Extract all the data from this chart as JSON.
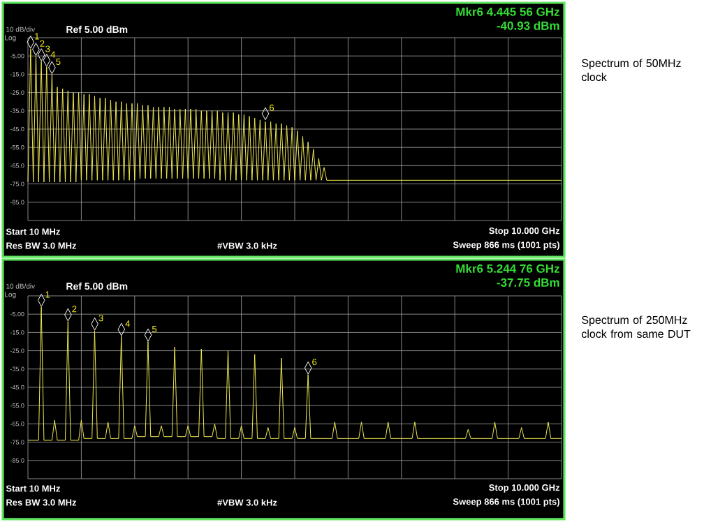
{
  "chart_data": [
    {
      "type": "line",
      "ylim": [
        -95,
        5
      ],
      "categories": [
        null,
        null,
        null,
        null,
        null,
        null,
        null,
        null,
        null,
        null,
        null,
        null,
        null,
        null,
        null,
        null,
        null,
        null,
        null,
        null,
        null,
        null,
        null,
        null,
        null,
        null,
        null,
        null,
        null,
        null,
        null,
        null,
        null,
        null,
        null,
        null,
        null,
        null,
        null,
        null,
        null,
        null,
        null,
        null,
        null,
        null,
        null,
        null,
        null,
        null,
        null,
        null,
        null,
        null,
        null,
        null,
        null,
        null,
        null,
        null,
        null,
        null,
        null,
        null,
        null,
        null,
        null,
        null,
        null,
        null,
        null,
        null,
        null,
        null,
        null,
        null,
        null,
        null,
        null,
        null,
        null,
        null,
        null,
        null,
        null,
        null,
        null,
        null,
        null,
        null,
        null,
        null,
        null,
        null,
        null,
        null,
        null,
        null,
        null,
        null,
        null,
        null,
        null,
        null,
        null,
        null,
        null,
        null,
        null,
        null,
        null,
        null,
        null,
        null,
        null,
        null,
        null,
        null,
        null,
        null,
        null,
        null,
        null,
        null,
        null,
        null,
        null,
        null,
        null,
        null,
        null,
        null,
        null,
        null,
        null,
        null,
        null,
        null,
        null,
        null,
        null,
        null,
        null,
        null,
        null,
        null,
        null,
        null,
        null,
        null,
        null,
        null,
        null,
        null,
        null,
        null,
        null,
        null,
        null,
        null,
        null,
        null,
        null,
        null,
        null,
        null,
        null,
        null,
        null,
        null,
        null,
        null,
        null,
        null,
        null,
        null,
        null,
        null,
        null,
        null,
        null,
        null,
        null,
        null,
        null,
        null,
        null,
        null,
        null,
        null,
        null,
        null,
        null,
        null,
        null,
        null,
        null,
        null,
        null,
        null,
        null
      ],
      "yticks": [
        {
          "value": -5,
          "label": "-5.00"
        },
        {
          "value": -15,
          "label": "-15.0"
        },
        {
          "value": -25,
          "label": "-25.0"
        },
        {
          "value": -35,
          "label": "-35.0"
        },
        {
          "value": -45,
          "label": "-45.0"
        },
        {
          "value": -55,
          "label": "-55.0"
        },
        {
          "value": -65,
          "label": "-65.0"
        },
        {
          "value": -75,
          "label": "-75.0"
        },
        {
          "value": -85,
          "label": "-85.0"
        }
      ],
      "tick_labels": "y",
      "grid": true,
      "series": [
        {
          "color": "#f0e850",
          "values": [
            -74,
            -1,
            -74,
            -5,
            -74,
            -8,
            -74,
            -11,
            -74,
            -15,
            -74,
            -22,
            -74,
            -23,
            -74,
            -24,
            -74,
            -25,
            -74,
            -25,
            -73,
            -26,
            -73,
            -26,
            -73,
            -27,
            -73,
            -28,
            -73,
            -28,
            -73,
            -29,
            -73,
            -30,
            -73,
            -30,
            -73,
            -31,
            -73,
            -31,
            -73,
            -31,
            -72,
            -32,
            -72,
            -32,
            -72,
            -33,
            -72,
            -33,
            -72,
            -33,
            -72,
            -33,
            -72,
            -34,
            -72,
            -34,
            -72,
            -34,
            -72,
            -34,
            -72,
            -34,
            -72,
            -35,
            -72,
            -35,
            -72,
            -35,
            -72,
            -35,
            -73,
            -36,
            -73,
            -36,
            -73,
            -36,
            -73,
            -37,
            -73,
            -37,
            -73,
            -38,
            -73,
            -39,
            -73,
            -40,
            -73,
            -41,
            -73,
            -41,
            -73,
            -42,
            -73,
            -42,
            -73,
            -43,
            -73,
            -44,
            -73,
            -46,
            -73,
            -49,
            -73,
            -52,
            -73,
            -56,
            -73,
            -61,
            -73,
            -66,
            -73,
            -73,
            -73,
            -73,
            -73,
            -73,
            -73,
            -73,
            -73,
            -73,
            -73,
            -73,
            -73,
            -73,
            -73,
            -73,
            -73,
            -73,
            -73,
            -73,
            -73,
            -73,
            -73,
            -73,
            -73,
            -73,
            -73,
            -73,
            -73,
            -73,
            -73,
            -73,
            -73,
            -73,
            -73,
            -73,
            -73,
            -73,
            -73,
            -73,
            -73,
            -73,
            -73,
            -73,
            -73,
            -73,
            -73,
            -73,
            -73,
            -73,
            -73,
            -73,
            -73,
            -73,
            -73,
            -73,
            -73,
            -73,
            -73,
            -73,
            -73,
            -73,
            -73,
            -73,
            -73,
            -73,
            -73,
            -73,
            -73,
            -73,
            -73,
            -73,
            -73,
            -73,
            -73,
            -73,
            -73,
            -73,
            -73,
            -73,
            -73,
            -73,
            -73,
            -73,
            -73,
            -73,
            -73,
            -73,
            -73
          ]
        }
      ],
      "annotations": [
        "Mkr6 4.445 56 GHz",
        "-40.93 dBm",
        "10 dB/div",
        "Ref 5.00 dBm",
        "Log",
        "Start 10 MHz",
        "Stop 10.000 GHz",
        "Res BW 3.0 MHz",
        "#VBW 3.0 kHz",
        "Sweep  866 ms (1001 pts)",
        "1",
        "2",
        "3",
        "4",
        "5",
        "6",
        "Spectrum of 50MHz clock"
      ]
    },
    {
      "type": "line",
      "ylim": [
        -95,
        5
      ],
      "categories": [
        null,
        null,
        null,
        null,
        null,
        null,
        null,
        null,
        null,
        null,
        null,
        null,
        null,
        null,
        null,
        null,
        null,
        null,
        null,
        null,
        null,
        null,
        null,
        null,
        null,
        null,
        null,
        null,
        null,
        null,
        null,
        null,
        null,
        null,
        null,
        null,
        null,
        null,
        null,
        null,
        null,
        null,
        null,
        null,
        null,
        null,
        null,
        null,
        null,
        null,
        null,
        null,
        null,
        null,
        null,
        null,
        null,
        null,
        null,
        null,
        null,
        null,
        null,
        null,
        null,
        null,
        null,
        null,
        null,
        null,
        null,
        null,
        null,
        null,
        null,
        null,
        null,
        null,
        null,
        null,
        null,
        null,
        null,
        null,
        null,
        null,
        null,
        null,
        null,
        null,
        null,
        null,
        null,
        null,
        null,
        null,
        null,
        null,
        null,
        null,
        null,
        null,
        null,
        null,
        null,
        null,
        null,
        null,
        null,
        null,
        null,
        null,
        null,
        null,
        null,
        null,
        null,
        null,
        null,
        null,
        null,
        null,
        null,
        null,
        null,
        null,
        null,
        null,
        null,
        null,
        null,
        null,
        null,
        null,
        null,
        null,
        null,
        null,
        null,
        null,
        null,
        null,
        null,
        null,
        null,
        null,
        null,
        null,
        null,
        null,
        null,
        null,
        null,
        null,
        null,
        null,
        null,
        null,
        null,
        null,
        null,
        null,
        null,
        null,
        null,
        null,
        null,
        null,
        null,
        null,
        null,
        null,
        null,
        null,
        null,
        null,
        null,
        null,
        null,
        null,
        null,
        null,
        null,
        null,
        null,
        null,
        null,
        null,
        null,
        null,
        null,
        null,
        null,
        null,
        null,
        null,
        null,
        null,
        null,
        null,
        null
      ],
      "yticks": [
        {
          "value": -5,
          "label": "-5.00"
        },
        {
          "value": -15,
          "label": "-15.0"
        },
        {
          "value": -25,
          "label": "-25.0"
        },
        {
          "value": -35,
          "label": "-35.0"
        },
        {
          "value": -45,
          "label": "-45.0"
        },
        {
          "value": -55,
          "label": "-55.0"
        },
        {
          "value": -65,
          "label": "-65.0"
        },
        {
          "value": -75,
          "label": "-75.0"
        },
        {
          "value": -85,
          "label": "-85.0"
        }
      ],
      "tick_labels": "y",
      "grid": true,
      "series": [
        {
          "color": "#f0e850",
          "values": [
            -74,
            -74,
            -74,
            -74,
            -74,
            -1,
            -74,
            -74,
            -74,
            -74,
            -63,
            -74,
            -74,
            -74,
            -74,
            -9,
            -74,
            -74,
            -74,
            -74,
            -63,
            -73,
            -73,
            -73,
            -73,
            -14,
            -73,
            -73,
            -73,
            -73,
            -64,
            -73,
            -73,
            -73,
            -73,
            -17,
            -73,
            -73,
            -73,
            -73,
            -66,
            -72,
            -72,
            -72,
            -72,
            -20,
            -72,
            -72,
            -72,
            -72,
            -66,
            -72,
            -72,
            -72,
            -72,
            -23,
            -72,
            -72,
            -72,
            -72,
            -66,
            -72,
            -72,
            -72,
            -72,
            -24,
            -72,
            -72,
            -72,
            -72,
            -65,
            -73,
            -73,
            -73,
            -73,
            -25,
            -73,
            -73,
            -73,
            -73,
            -66,
            -73,
            -73,
            -73,
            -73,
            -27,
            -73,
            -73,
            -73,
            -73,
            -67,
            -73,
            -73,
            -73,
            -73,
            -29,
            -73,
            -73,
            -73,
            -73,
            -67,
            -73,
            -73,
            -73,
            -73,
            -38,
            -73,
            -73,
            -73,
            -73,
            -73,
            -73,
            -73,
            -73,
            -73,
            -64,
            -73,
            -73,
            -73,
            -73,
            -73,
            -73,
            -73,
            -73,
            -73,
            -64,
            -73,
            -73,
            -73,
            -73,
            -73,
            -73,
            -73,
            -73,
            -73,
            -64,
            -73,
            -73,
            -73,
            -73,
            -73,
            -73,
            -73,
            -73,
            -73,
            -64,
            -73,
            -73,
            -73,
            -73,
            -73,
            -73,
            -73,
            -73,
            -73,
            -73,
            -73,
            -73,
            -73,
            -73,
            -73,
            -73,
            -73,
            -73,
            -73,
            -68,
            -73,
            -73,
            -73,
            -73,
            -73,
            -73,
            -73,
            -73,
            -73,
            -64,
            -73,
            -73,
            -73,
            -73,
            -73,
            -73,
            -73,
            -73,
            -73,
            -67,
            -73,
            -73,
            -73,
            -73,
            -73,
            -73,
            -73,
            -73,
            -73,
            -64,
            -73,
            -73,
            -73,
            -73,
            -73
          ]
        }
      ],
      "annotations": [
        "Mkr6 5.244 76 GHz",
        "-37.75 dBm",
        "10 dB/div",
        "Ref 5.00 dBm",
        "Log",
        "Start 10 MHz",
        "Stop 10.000 GHz",
        "Res BW 3.0 MHz",
        "#VBW 3.0 kHz",
        "Sweep  866 ms (1001 pts)",
        "1",
        "2",
        "3",
        "4",
        "5",
        "6",
        "Spectrum of 250MHz clock from same DUT"
      ]
    }
  ]
}
